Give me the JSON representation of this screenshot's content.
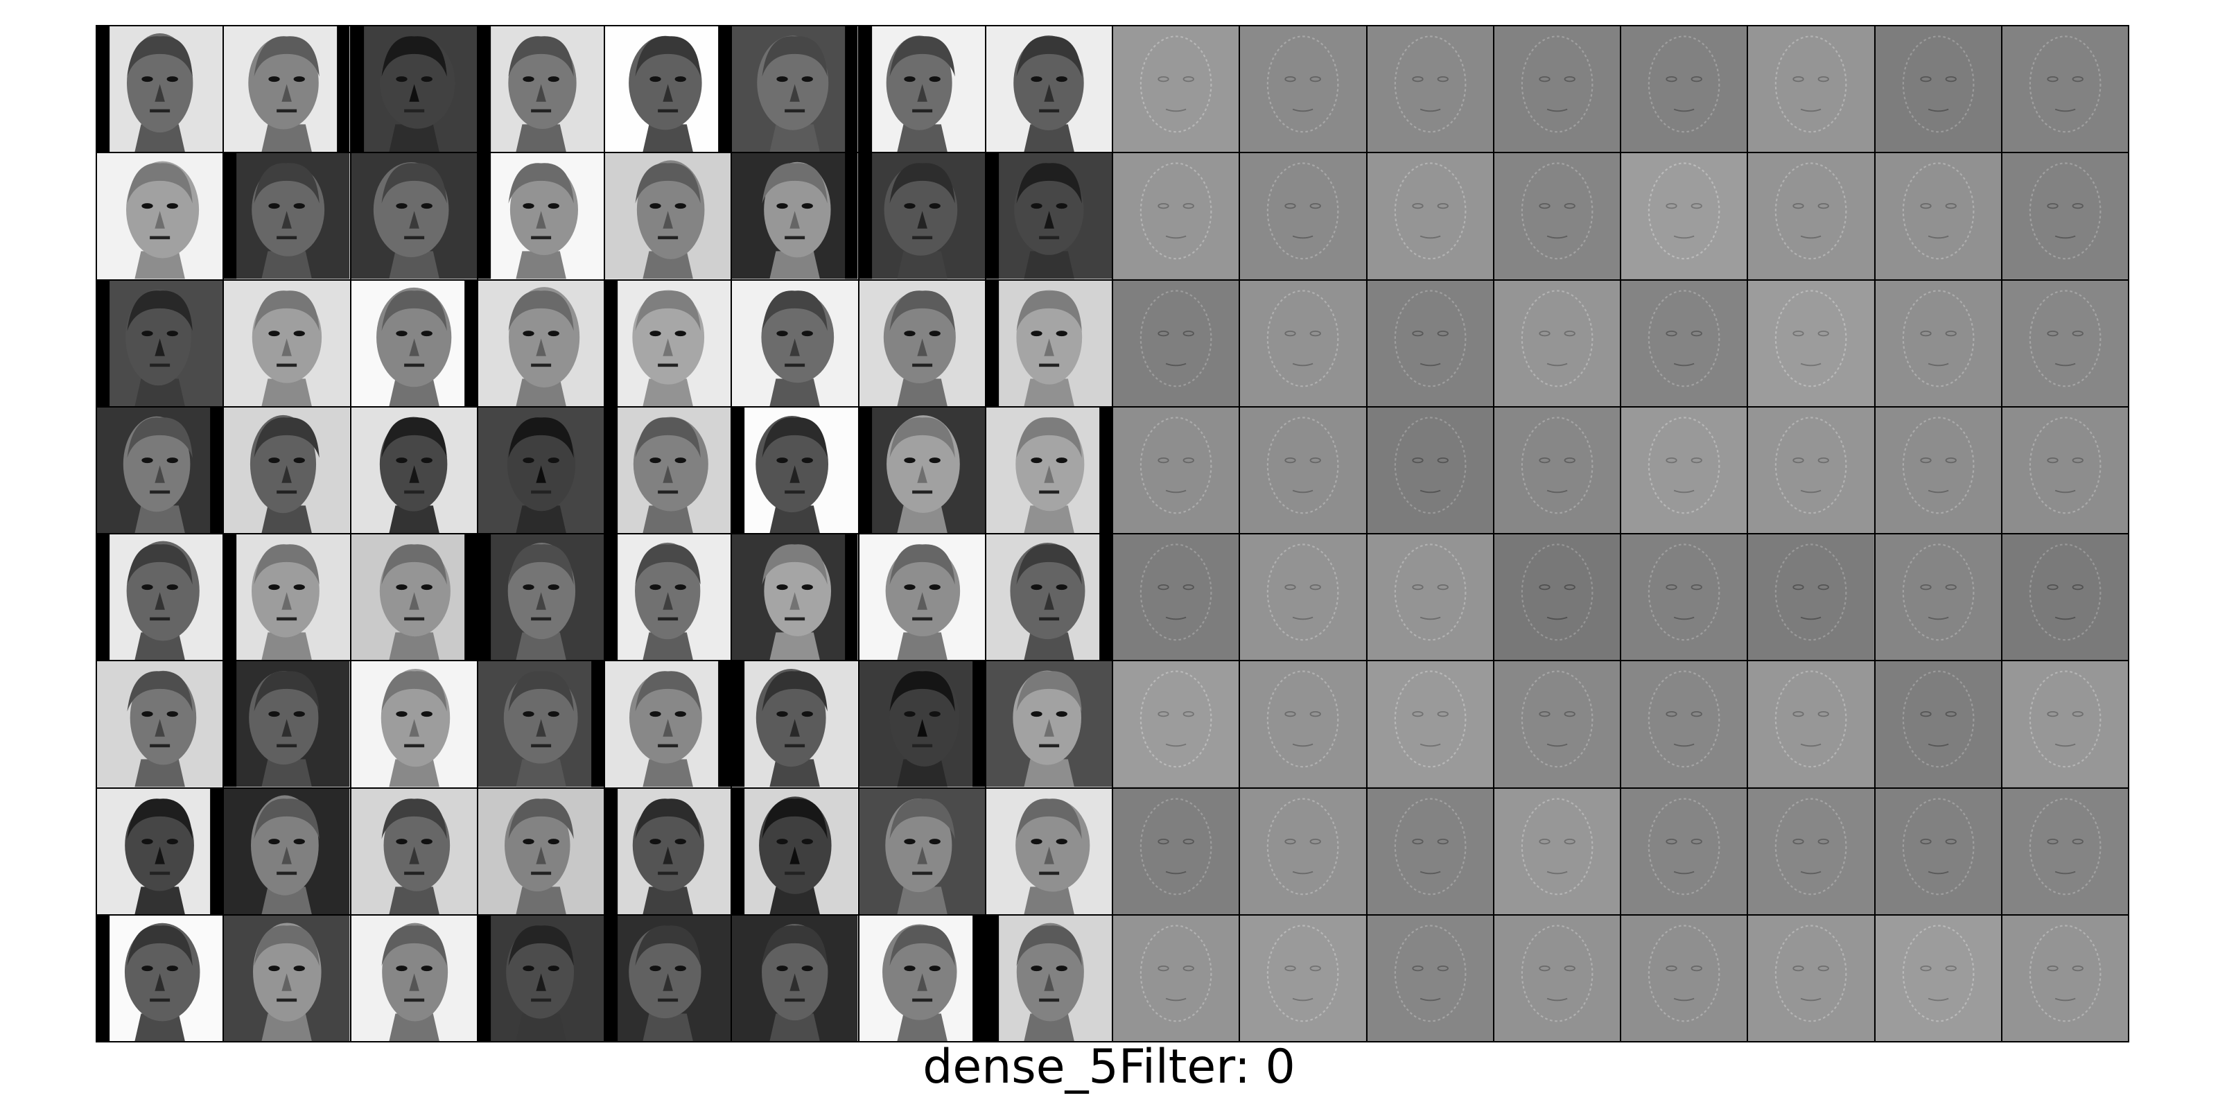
{
  "caption": "dense_5Filter: 0",
  "grid": {
    "rows": 8,
    "columns": 16,
    "left_panel": "input images (grayscale portrait busts)",
    "right_panel": "filter activation maps"
  },
  "colors": {
    "background": "#ffffff",
    "border": "#000000",
    "photo_light": "#f2f2f2",
    "photo_dark": "#1a1a1a",
    "filter_gray": "#8a8a8a"
  }
}
